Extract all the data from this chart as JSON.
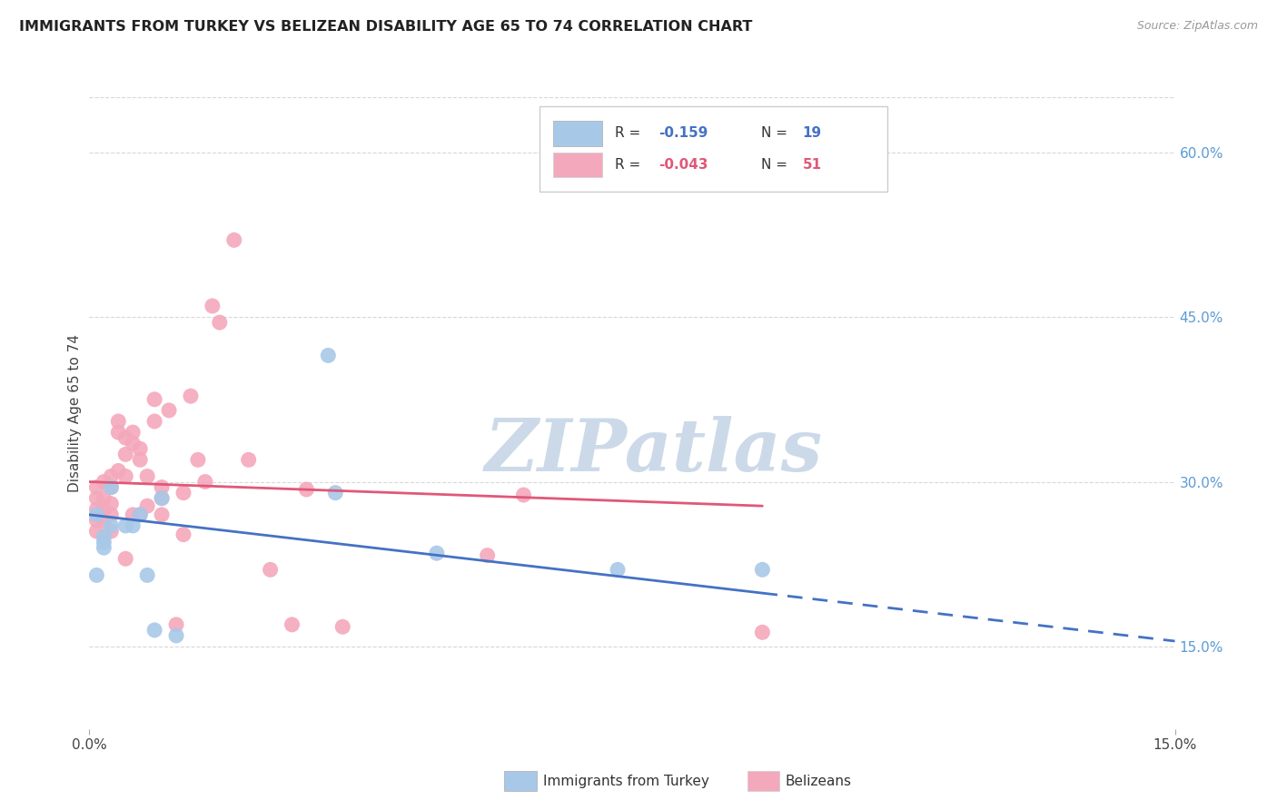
{
  "title": "IMMIGRANTS FROM TURKEY VS BELIZEAN DISABILITY AGE 65 TO 74 CORRELATION CHART",
  "source": "Source: ZipAtlas.com",
  "ylabel": "Disability Age 65 to 74",
  "xmin": 0.0,
  "xmax": 0.15,
  "ymin": 0.075,
  "ymax": 0.65,
  "yticks_right": [
    0.15,
    0.3,
    0.45,
    0.6
  ],
  "ytick_labels_right": [
    "15.0%",
    "30.0%",
    "45.0%",
    "60.0%"
  ],
  "blue_color": "#a8c8e8",
  "pink_color": "#f4a8bc",
  "blue_line_color": "#4472c4",
  "pink_line_color": "#e05878",
  "turkey_x": [
    0.001,
    0.001,
    0.002,
    0.002,
    0.002,
    0.003,
    0.003,
    0.005,
    0.006,
    0.007,
    0.008,
    0.009,
    0.01,
    0.012,
    0.033,
    0.034,
    0.048,
    0.073,
    0.093
  ],
  "turkey_y": [
    0.27,
    0.215,
    0.25,
    0.24,
    0.245,
    0.295,
    0.26,
    0.26,
    0.26,
    0.27,
    0.215,
    0.165,
    0.285,
    0.16,
    0.415,
    0.29,
    0.235,
    0.22,
    0.22
  ],
  "belize_x": [
    0.001,
    0.001,
    0.001,
    0.001,
    0.001,
    0.002,
    0.002,
    0.002,
    0.002,
    0.003,
    0.003,
    0.003,
    0.003,
    0.003,
    0.004,
    0.004,
    0.004,
    0.005,
    0.005,
    0.005,
    0.005,
    0.006,
    0.006,
    0.006,
    0.007,
    0.007,
    0.007,
    0.008,
    0.008,
    0.009,
    0.009,
    0.01,
    0.01,
    0.01,
    0.011,
    0.012,
    0.013,
    0.013,
    0.014,
    0.015,
    0.016,
    0.017,
    0.018,
    0.02,
    0.022,
    0.025,
    0.028,
    0.03,
    0.035,
    0.055,
    0.06,
    0.093
  ],
  "belize_y": [
    0.295,
    0.285,
    0.275,
    0.265,
    0.255,
    0.3,
    0.285,
    0.275,
    0.265,
    0.305,
    0.295,
    0.28,
    0.27,
    0.255,
    0.355,
    0.345,
    0.31,
    0.34,
    0.325,
    0.305,
    0.23,
    0.345,
    0.335,
    0.27,
    0.33,
    0.32,
    0.27,
    0.305,
    0.278,
    0.375,
    0.355,
    0.295,
    0.285,
    0.27,
    0.365,
    0.17,
    0.29,
    0.252,
    0.378,
    0.32,
    0.3,
    0.46,
    0.445,
    0.52,
    0.32,
    0.22,
    0.17,
    0.293,
    0.168,
    0.233,
    0.288,
    0.163
  ],
  "grid_color": "#d8d8d8",
  "background_color": "#ffffff",
  "watermark_color": "#ccd9e8"
}
